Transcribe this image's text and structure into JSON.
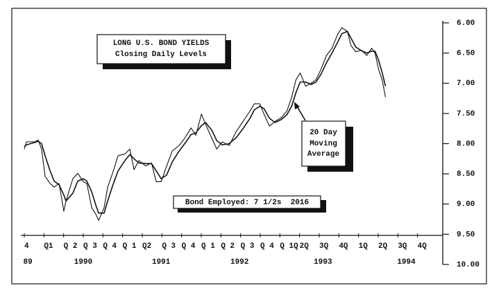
{
  "chart_data": {
    "type": "line",
    "title": [
      "LONG U.S. BOND YIELDS",
      "Closing Daily Levels"
    ],
    "annotations": {
      "moving_average": [
        "20 Day",
        "Moving",
        "Average"
      ],
      "bond": "Bond Employed: 7 1/2s  2016"
    },
    "xlim": [
      0,
      21
    ],
    "ylim": [
      10,
      6
    ],
    "yticks": [
      {
        "value": 6,
        "label": "6.00"
      },
      {
        "value": 6.5,
        "label": "6.50"
      },
      {
        "value": 7,
        "label": "7.00"
      },
      {
        "value": 7.5,
        "label": "7.50"
      },
      {
        "value": 8,
        "label": "8.00"
      },
      {
        "value": 8.5,
        "label": "8.50"
      },
      {
        "value": 9,
        "label": "9.00"
      },
      {
        "value": 9.5,
        "label": "9.50"
      },
      {
        "value": 10,
        "label": "10.00"
      }
    ],
    "xticks": [
      {
        "value": 0,
        "label": "4"
      },
      {
        "value": 1,
        "label": "Q1"
      },
      {
        "value": 2,
        "label": "Q 2"
      },
      {
        "value": 3,
        "label": "Q 3"
      },
      {
        "value": 4,
        "label": "Q 4"
      },
      {
        "value": 5,
        "label": "Q 1"
      },
      {
        "value": 6,
        "label": "Q2"
      },
      {
        "value": 7,
        "label": "Q 3"
      },
      {
        "value": 8,
        "label": "Q 4"
      },
      {
        "value": 9,
        "label": "Q 1"
      },
      {
        "value": 10,
        "label": "Q 2"
      },
      {
        "value": 11,
        "label": "Q 3"
      },
      {
        "value": 12,
        "label": "Q 4"
      },
      {
        "value": 13,
        "label": "Q 1Q"
      },
      {
        "value": 14,
        "label": "2Q"
      },
      {
        "value": 15,
        "label": "3Q"
      },
      {
        "value": 16,
        "label": "4Q"
      },
      {
        "value": 17,
        "label": "1Q"
      },
      {
        "value": 18,
        "label": "2Q"
      },
      {
        "value": 19,
        "label": "3Q"
      },
      {
        "value": 20,
        "label": "4Q"
      }
    ],
    "year_labels": [
      {
        "value": 0.18,
        "label": "89"
      },
      {
        "value": 3.0,
        "label": "1990"
      },
      {
        "value": 6.96,
        "label": "1991"
      },
      {
        "value": 10.95,
        "label": "1992"
      },
      {
        "value": 15.19,
        "label": "1993"
      },
      {
        "value": 19.43,
        "label": "1994"
      }
    ],
    "x": [
      0,
      0.11,
      0.53,
      0.71,
      0.88,
      1.06,
      1.31,
      1.52,
      1.77,
      2.01,
      2.12,
      2.47,
      2.72,
      3.0,
      3.18,
      3.43,
      3.64,
      3.78,
      4.06,
      4.24,
      4.49,
      4.77,
      5.12,
      5.37,
      5.58,
      5.83,
      6.18,
      6.47,
      6.71,
      6.96,
      7.24,
      7.53,
      7.88,
      8.16,
      8.48,
      8.73,
      9.01,
      9.22,
      9.54,
      9.79,
      10.07,
      10.42,
      10.78,
      11.13,
      11.48,
      11.7,
      11.98,
      12.19,
      12.47,
      12.76,
      13.07,
      13.36,
      13.6,
      13.82,
      14.03,
      14.31,
      14.59,
      14.84,
      15.09,
      15.37,
      15.65,
      15.94,
      16.15,
      16.43,
      16.61,
      16.86,
      17.14,
      17.42,
      17.67,
      17.84,
      18.02,
      18.2,
      18.37
    ],
    "series": [
      {
        "color": "#111111",
        "values": [
          8.09,
          7.97,
          7.97,
          7.94,
          8.09,
          8.54,
          8.66,
          8.72,
          8.66,
          9.12,
          8.95,
          8.58,
          8.49,
          8.63,
          8.66,
          9.06,
          9.17,
          9.27,
          9.06,
          8.72,
          8.49,
          8.2,
          8.17,
          8.09,
          8.43,
          8.28,
          8.37,
          8.32,
          8.63,
          8.63,
          8.37,
          8.12,
          8.03,
          7.91,
          7.74,
          7.86,
          7.51,
          7.68,
          7.91,
          8.09,
          7.97,
          8.03,
          7.8,
          7.63,
          7.46,
          7.34,
          7.34,
          7.51,
          7.71,
          7.63,
          7.57,
          7.46,
          7.23,
          6.94,
          6.83,
          7.05,
          7.0,
          6.94,
          6.77,
          6.54,
          6.42,
          6.19,
          6.08,
          6.14,
          6.37,
          6.48,
          6.45,
          6.54,
          6.42,
          6.5,
          6.77,
          6.94,
          7.23
        ]
      },
      {
        "color": "#111111",
        "values": [
          8.05,
          8.02,
          7.98,
          7.96,
          8.0,
          8.2,
          8.45,
          8.62,
          8.68,
          8.85,
          8.95,
          8.82,
          8.62,
          8.58,
          8.62,
          8.8,
          9.02,
          9.15,
          9.15,
          8.95,
          8.7,
          8.45,
          8.28,
          8.18,
          8.25,
          8.32,
          8.33,
          8.33,
          8.45,
          8.58,
          8.52,
          8.3,
          8.12,
          8.0,
          7.85,
          7.82,
          7.7,
          7.65,
          7.78,
          7.95,
          8.02,
          8.0,
          7.9,
          7.75,
          7.58,
          7.44,
          7.38,
          7.42,
          7.58,
          7.65,
          7.6,
          7.52,
          7.38,
          7.15,
          6.98,
          6.98,
          7.02,
          6.98,
          6.85,
          6.66,
          6.5,
          6.32,
          6.18,
          6.14,
          6.25,
          6.4,
          6.46,
          6.5,
          6.47,
          6.47,
          6.62,
          6.82,
          7.05
        ]
      }
    ]
  }
}
